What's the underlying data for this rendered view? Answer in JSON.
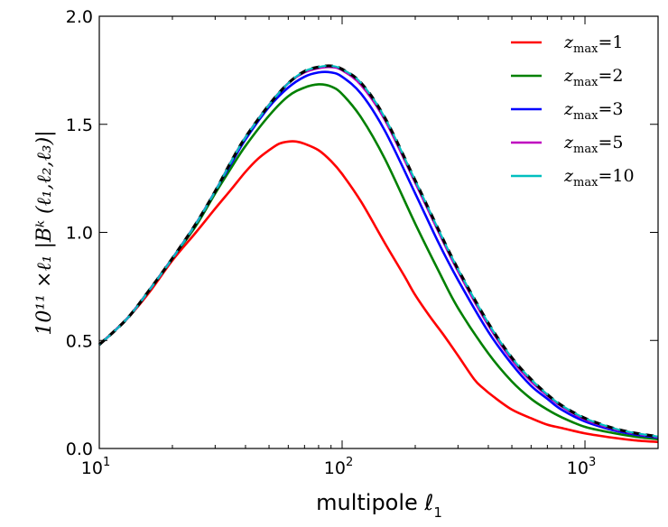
{
  "chart_data": {
    "type": "line",
    "x_scale": "log",
    "xlim": [
      10,
      2000
    ],
    "ylim": [
      0,
      2.0
    ],
    "xlabel": "multipole ℓ",
    "xlabel_sub": "1",
    "ylabel": "10¹¹ ×ℓ₁ |Bᵏ (ℓ₁,ℓ₂,ℓ₃)|",
    "x_ticks": [
      {
        "value": 10,
        "base": "10",
        "exp": "1"
      },
      {
        "value": 100,
        "base": "10",
        "exp": "2"
      },
      {
        "value": 1000,
        "base": "10",
        "exp": "3"
      }
    ],
    "y_ticks": [
      {
        "value": 0,
        "label": "0.0"
      },
      {
        "value": 0.5,
        "label": "0.5"
      },
      {
        "value": 1.0,
        "label": "1.0"
      },
      {
        "value": 1.5,
        "label": "1.5"
      },
      {
        "value": 2.0,
        "label": "2.0"
      }
    ],
    "legend_position": "top-right",
    "series": [
      {
        "name": "z_max=1",
        "legend_var": "z",
        "legend_sub": "max",
        "legend_val": "1",
        "color": "#ff0000",
        "dashed": false,
        "in_legend": true,
        "x": [
          10,
          13,
          16,
          20,
          25,
          30,
          35,
          40,
          45,
          50,
          55,
          60,
          65,
          70,
          80,
          90,
          100,
          120,
          150,
          180,
          200,
          230,
          260,
          300,
          350,
          380,
          420,
          500,
          600,
          700,
          800,
          1000,
          1300,
          1600,
          2000
        ],
        "y": [
          0.48,
          0.6,
          0.72,
          0.87,
          1.0,
          1.11,
          1.2,
          1.28,
          1.34,
          1.38,
          1.41,
          1.42,
          1.42,
          1.41,
          1.38,
          1.33,
          1.27,
          1.14,
          0.95,
          0.8,
          0.71,
          0.61,
          0.53,
          0.43,
          0.32,
          0.28,
          0.24,
          0.18,
          0.14,
          0.11,
          0.095,
          0.07,
          0.05,
          0.038,
          0.03
        ]
      },
      {
        "name": "z_max=2",
        "legend_var": "z",
        "legend_sub": "max",
        "legend_val": "2",
        "color": "#008000",
        "dashed": false,
        "in_legend": true,
        "x": [
          10,
          13,
          16,
          20,
          25,
          30,
          35,
          40,
          50,
          60,
          70,
          80,
          90,
          100,
          120,
          150,
          200,
          250,
          300,
          400,
          500,
          600,
          700,
          800,
          1000,
          1300,
          1600,
          2000
        ],
        "y": [
          0.48,
          0.6,
          0.73,
          0.88,
          1.03,
          1.18,
          1.3,
          1.4,
          1.54,
          1.63,
          1.67,
          1.685,
          1.675,
          1.64,
          1.53,
          1.34,
          1.04,
          0.82,
          0.65,
          0.44,
          0.31,
          0.23,
          0.18,
          0.145,
          0.1,
          0.072,
          0.055,
          0.043
        ]
      },
      {
        "name": "z_max=3",
        "legend_var": "z",
        "legend_sub": "max",
        "legend_val": "3",
        "color": "#0000ff",
        "dashed": false,
        "in_legend": true,
        "x": [
          10,
          13,
          16,
          20,
          25,
          30,
          35,
          40,
          50,
          60,
          70,
          80,
          90,
          100,
          120,
          150,
          200,
          250,
          300,
          400,
          500,
          600,
          700,
          800,
          1000,
          1300,
          1600,
          2000
        ],
        "y": [
          0.48,
          0.6,
          0.73,
          0.88,
          1.04,
          1.19,
          1.32,
          1.43,
          1.58,
          1.67,
          1.72,
          1.74,
          1.74,
          1.72,
          1.64,
          1.47,
          1.18,
          0.95,
          0.78,
          0.54,
          0.39,
          0.29,
          0.23,
          0.18,
          0.125,
          0.085,
          0.065,
          0.05
        ]
      },
      {
        "name": "z_max=5",
        "legend_var": "z",
        "legend_sub": "max",
        "legend_val": "5",
        "color": "#bf00bf",
        "dashed": false,
        "in_legend": true,
        "x": [
          10,
          13,
          16,
          20,
          25,
          30,
          35,
          40,
          50,
          60,
          70,
          80,
          90,
          100,
          120,
          150,
          200,
          250,
          300,
          400,
          500,
          600,
          700,
          800,
          1000,
          1300,
          1600,
          2000
        ],
        "y": [
          0.48,
          0.6,
          0.73,
          0.88,
          1.04,
          1.19,
          1.33,
          1.44,
          1.59,
          1.69,
          1.74,
          1.76,
          1.765,
          1.75,
          1.68,
          1.52,
          1.23,
          1.0,
          0.82,
          0.57,
          0.41,
          0.31,
          0.245,
          0.195,
          0.135,
          0.092,
          0.07,
          0.053
        ]
      },
      {
        "name": "reference (black dashed)",
        "color": "#000000",
        "dashed": true,
        "in_legend": false,
        "width": 3.2,
        "dasharray": "9 6",
        "x": [
          10,
          13,
          16,
          20,
          25,
          30,
          35,
          40,
          50,
          60,
          70,
          80,
          90,
          100,
          120,
          150,
          200,
          250,
          300,
          400,
          500,
          600,
          700,
          800,
          1000,
          1300,
          1600,
          2000
        ],
        "y": [
          0.48,
          0.6,
          0.73,
          0.88,
          1.04,
          1.19,
          1.33,
          1.44,
          1.59,
          1.69,
          1.745,
          1.765,
          1.77,
          1.755,
          1.69,
          1.53,
          1.24,
          1.01,
          0.83,
          0.58,
          0.42,
          0.32,
          0.25,
          0.2,
          0.14,
          0.095,
          0.072,
          0.055
        ]
      },
      {
        "name": "z_max=10",
        "legend_var": "z",
        "legend_sub": "max",
        "legend_val": "10",
        "color": "#00bfbf",
        "dashed": true,
        "in_legend": true,
        "width": 2.2,
        "dasharray": "9 6",
        "dashoffset": 7.5,
        "x": [
          10,
          13,
          16,
          20,
          25,
          30,
          35,
          40,
          50,
          60,
          70,
          80,
          90,
          100,
          120,
          150,
          200,
          250,
          300,
          400,
          500,
          600,
          700,
          800,
          1000,
          1300,
          1600,
          2000
        ],
        "y": [
          0.48,
          0.6,
          0.73,
          0.88,
          1.04,
          1.19,
          1.33,
          1.44,
          1.59,
          1.69,
          1.745,
          1.765,
          1.77,
          1.755,
          1.69,
          1.53,
          1.24,
          1.01,
          0.83,
          0.58,
          0.42,
          0.32,
          0.25,
          0.2,
          0.14,
          0.095,
          0.072,
          0.055
        ]
      }
    ]
  }
}
